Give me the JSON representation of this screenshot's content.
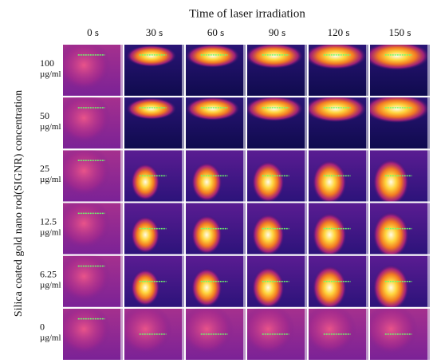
{
  "title": "Time of laser irradiation",
  "columns": [
    "0 s",
    "30 s",
    "60 s",
    "90 s",
    "120 s",
    "150 s"
  ],
  "y_axis_label": "Silica coated gold nano rod(SIGNR)  concentration",
  "rows": [
    {
      "value": "100",
      "unit": "µg/ml"
    },
    {
      "value": "50",
      "unit": "µg/ml"
    },
    {
      "value": "25",
      "unit": "µg/ml"
    },
    {
      "value": "12.5",
      "unit": "µg/ml"
    },
    {
      "value": "6.25",
      "unit": "µg/ml"
    },
    {
      "value": "0",
      "unit": "µg/ml"
    }
  ]
}
